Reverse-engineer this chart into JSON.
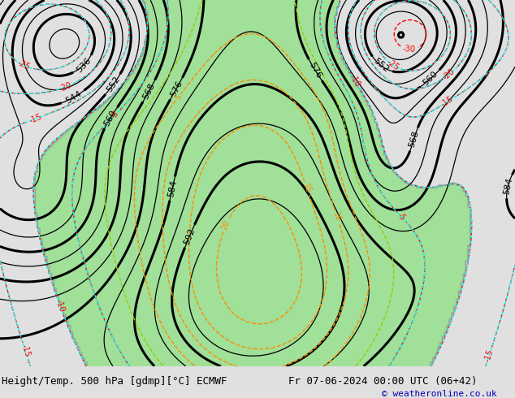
{
  "title_left": "Height/Temp. 500 hPa [gdmp][°C] ECMWF",
  "title_right": "Fr 07-06-2024 00:00 UTC (06+42)",
  "copyright": "© weatheronline.co.uk",
  "bg_color": "#e0e0e0",
  "map_bg": "#c8c8c8",
  "font_size_title": 9,
  "font_size_label": 7,
  "font_size_copyright": 8
}
